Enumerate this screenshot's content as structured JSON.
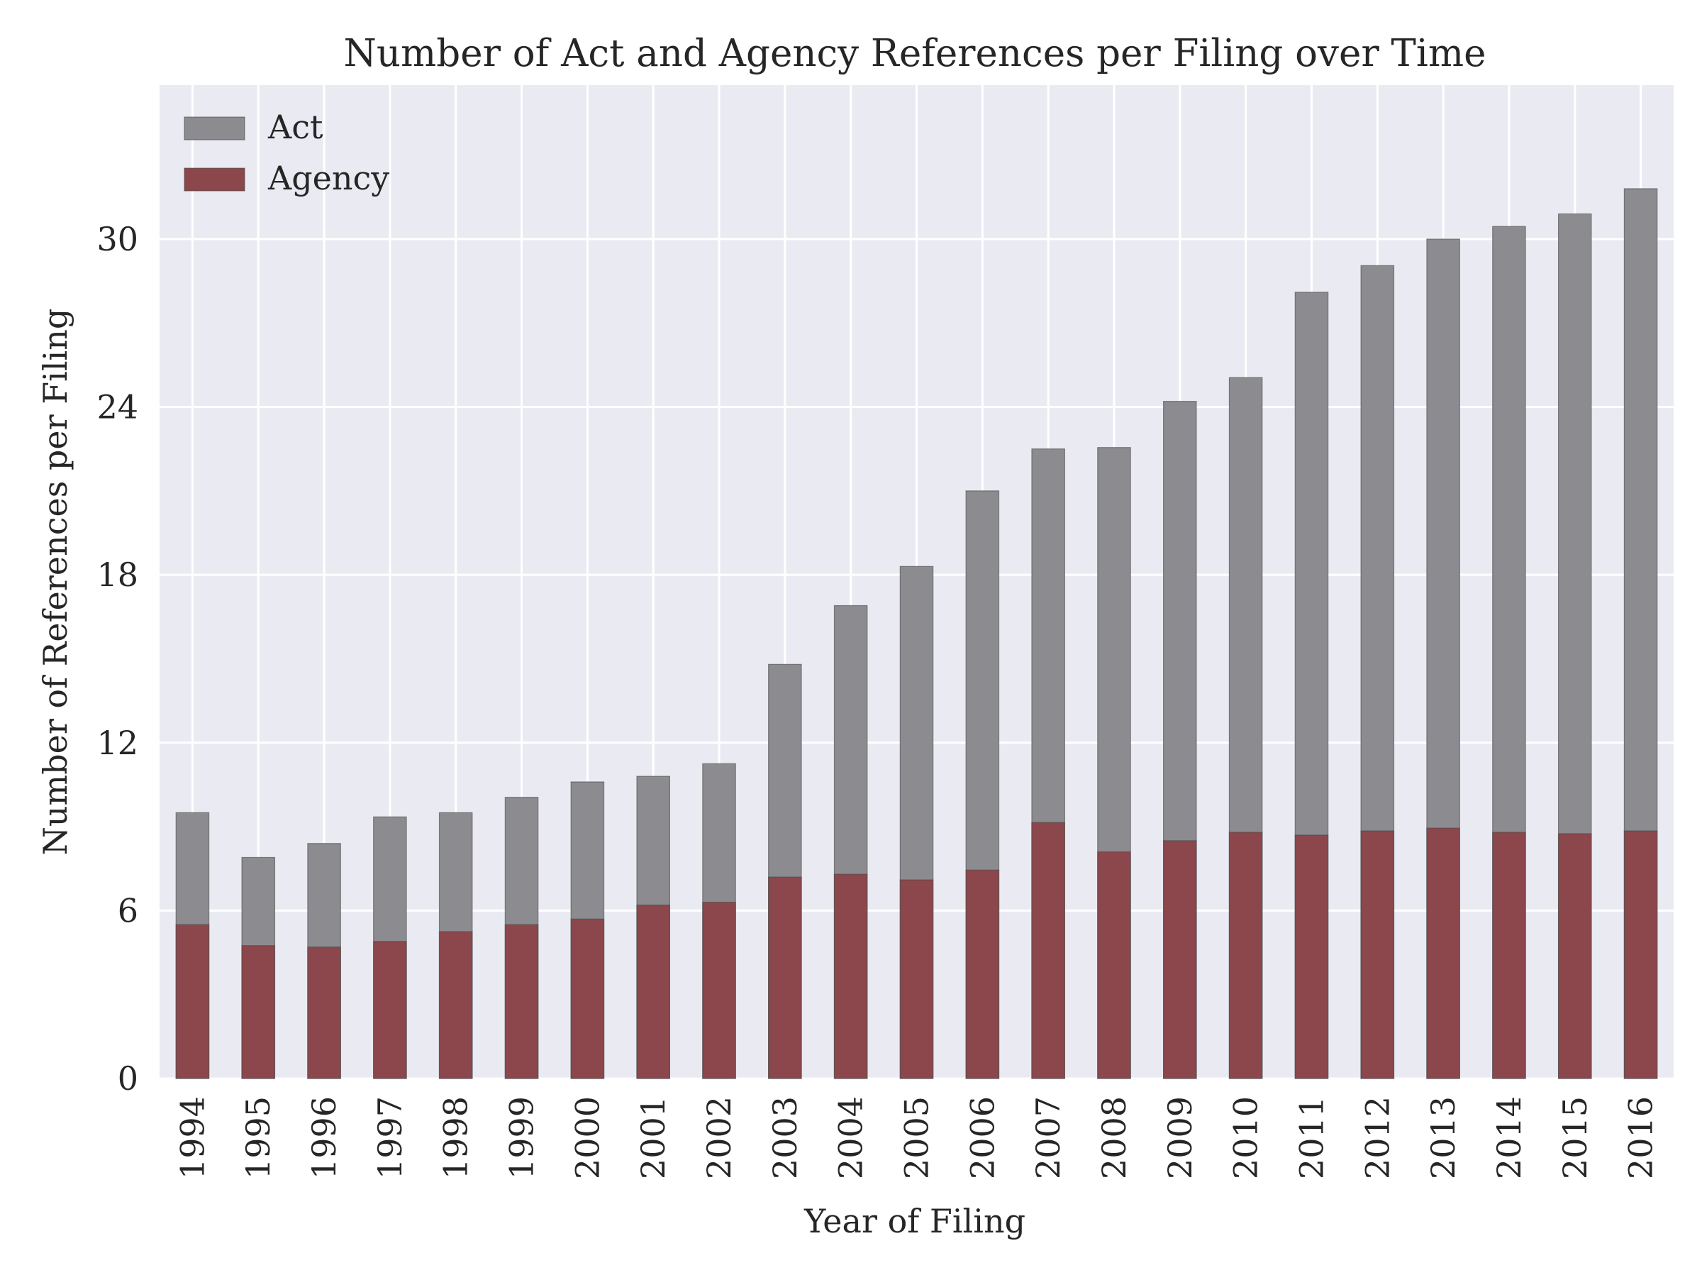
{
  "chart_data": {
    "type": "bar",
    "stacking": "overlay",
    "title": "Number of Act and Agency References per Filing over Time",
    "xlabel": "Year of Filing",
    "ylabel": "Number of References per Filing",
    "categories": [
      "1994",
      "1995",
      "1996",
      "1997",
      "1998",
      "1999",
      "2000",
      "2001",
      "2002",
      "2003",
      "2004",
      "2005",
      "2006",
      "2007",
      "2008",
      "2009",
      "2010",
      "2011",
      "2012",
      "2013",
      "2014",
      "2015",
      "2016"
    ],
    "series": [
      {
        "name": "Act",
        "color": "#8c8c90",
        "values": [
          9.5,
          7.9,
          8.4,
          9.35,
          9.5,
          10.05,
          10.6,
          10.8,
          11.25,
          14.8,
          16.9,
          18.3,
          21.0,
          22.5,
          22.55,
          24.2,
          25.05,
          28.1,
          29.05,
          30.0,
          30.45,
          30.9,
          31.8
        ]
      },
      {
        "name": "Agency",
        "color": "#8b474c",
        "values": [
          5.5,
          4.75,
          4.7,
          4.9,
          5.25,
          5.5,
          5.7,
          6.2,
          6.3,
          7.2,
          7.3,
          7.1,
          7.45,
          9.15,
          8.1,
          8.5,
          8.8,
          8.7,
          8.85,
          8.95,
          8.8,
          8.75,
          8.85
        ]
      }
    ],
    "ylim": [
      0,
      35.5
    ],
    "yticks": [
      0,
      6,
      12,
      18,
      24,
      30
    ],
    "grid": true,
    "legend_position": "top-left",
    "background_color": "#eaeaf2",
    "gridline_color": "#ffffff"
  }
}
